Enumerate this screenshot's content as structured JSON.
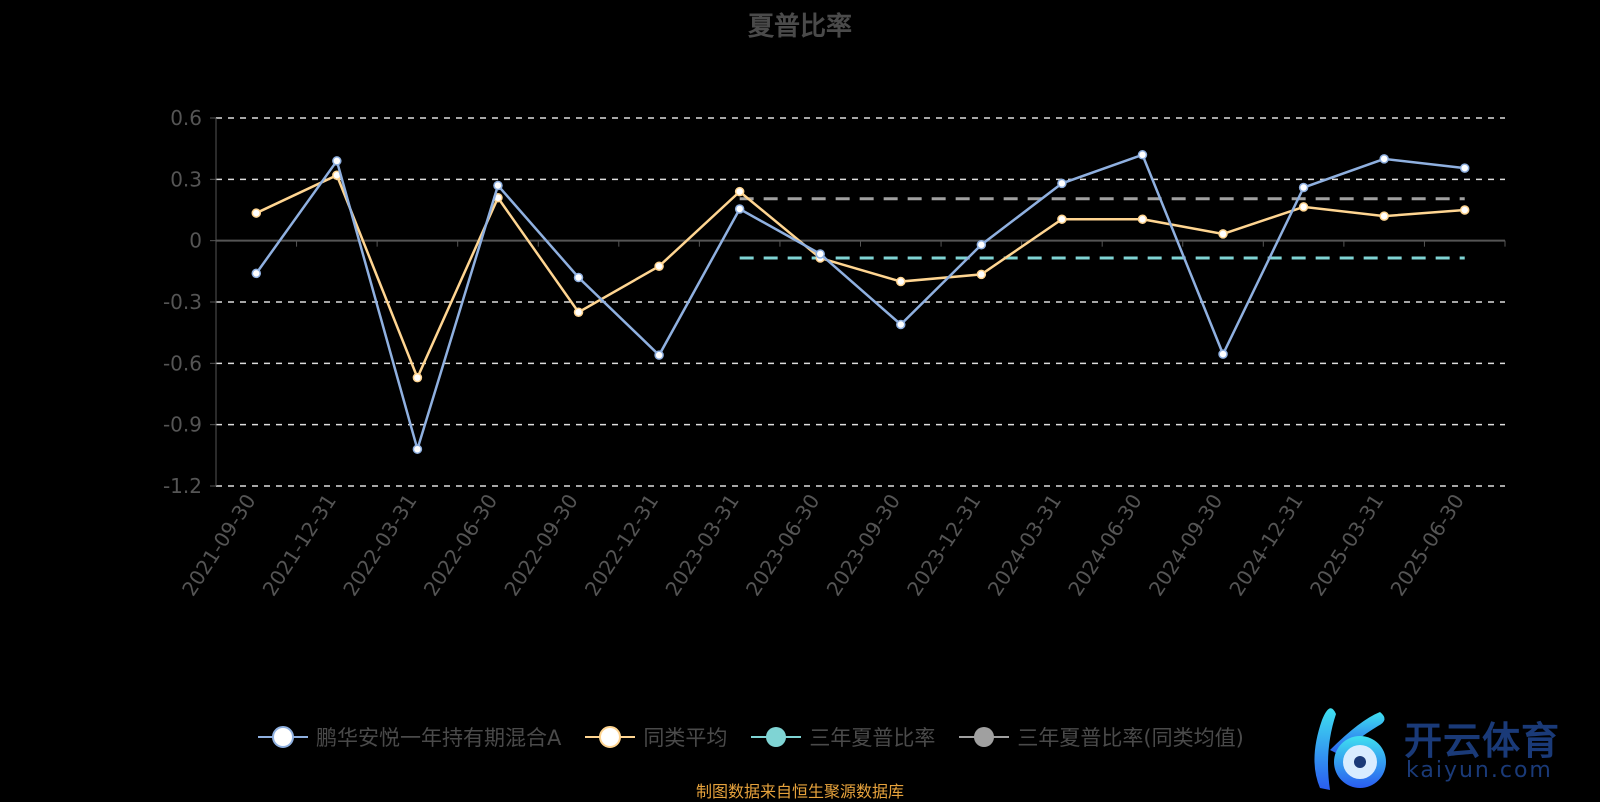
{
  "chart_data": {
    "type": "line",
    "title": "夏普比率",
    "categories": [
      "2021-09-30",
      "2021-12-31",
      "2022-03-31",
      "2022-06-30",
      "2022-09-30",
      "2022-12-31",
      "2023-03-31",
      "2023-06-30",
      "2023-09-30",
      "2023-12-31",
      "2024-03-31",
      "2024-06-30",
      "2024-09-30",
      "2024-12-31",
      "2025-03-31",
      "2025-06-30"
    ],
    "ylim": [
      -1.2,
      0.6
    ],
    "yticks": [
      0.6,
      0.3,
      0,
      -0.3,
      -0.6,
      -0.9,
      -1.2
    ],
    "ytick_labels": [
      "0.6",
      "0.3",
      "0",
      "-0.3",
      "-0.6",
      "-0.9",
      "-1.2"
    ],
    "grid": true,
    "legend_position": "bottom",
    "series": [
      {
        "name": "鹏华安悦一年持有期混合A",
        "color": "#8fb0e0",
        "values": [
          -0.16,
          0.39,
          -1.02,
          0.27,
          -0.18,
          -0.56,
          0.155,
          -0.065,
          -0.41,
          -0.02,
          0.28,
          0.42,
          -0.555,
          0.26,
          0.4,
          0.355
        ]
      },
      {
        "name": "同类平均",
        "color": "#ffd591",
        "values": [
          0.135,
          0.32,
          -0.67,
          0.21,
          -0.35,
          -0.125,
          0.24,
          -0.085,
          -0.2,
          -0.165,
          0.105,
          0.105,
          0.033,
          0.165,
          0.12,
          0.15
        ]
      },
      {
        "name": "三年夏普比率",
        "color": "#7fd4d4",
        "style": "dashed",
        "values": [
          null,
          null,
          null,
          null,
          null,
          null,
          -0.085,
          -0.085,
          -0.085,
          -0.085,
          -0.085,
          -0.085,
          -0.085,
          -0.085,
          -0.085,
          -0.085
        ]
      },
      {
        "name": "三年夏普比率(同类均值)",
        "color": "#a0a0a0",
        "style": "dashed",
        "values": [
          null,
          null,
          null,
          null,
          null,
          null,
          0.205,
          0.205,
          0.205,
          0.205,
          0.205,
          0.205,
          0.205,
          0.205,
          0.205,
          0.205
        ]
      }
    ]
  },
  "footer": "制图数据来自恒生聚源数据库",
  "watermark": {
    "cn": "开云体育",
    "en": "kaiyun.com"
  }
}
